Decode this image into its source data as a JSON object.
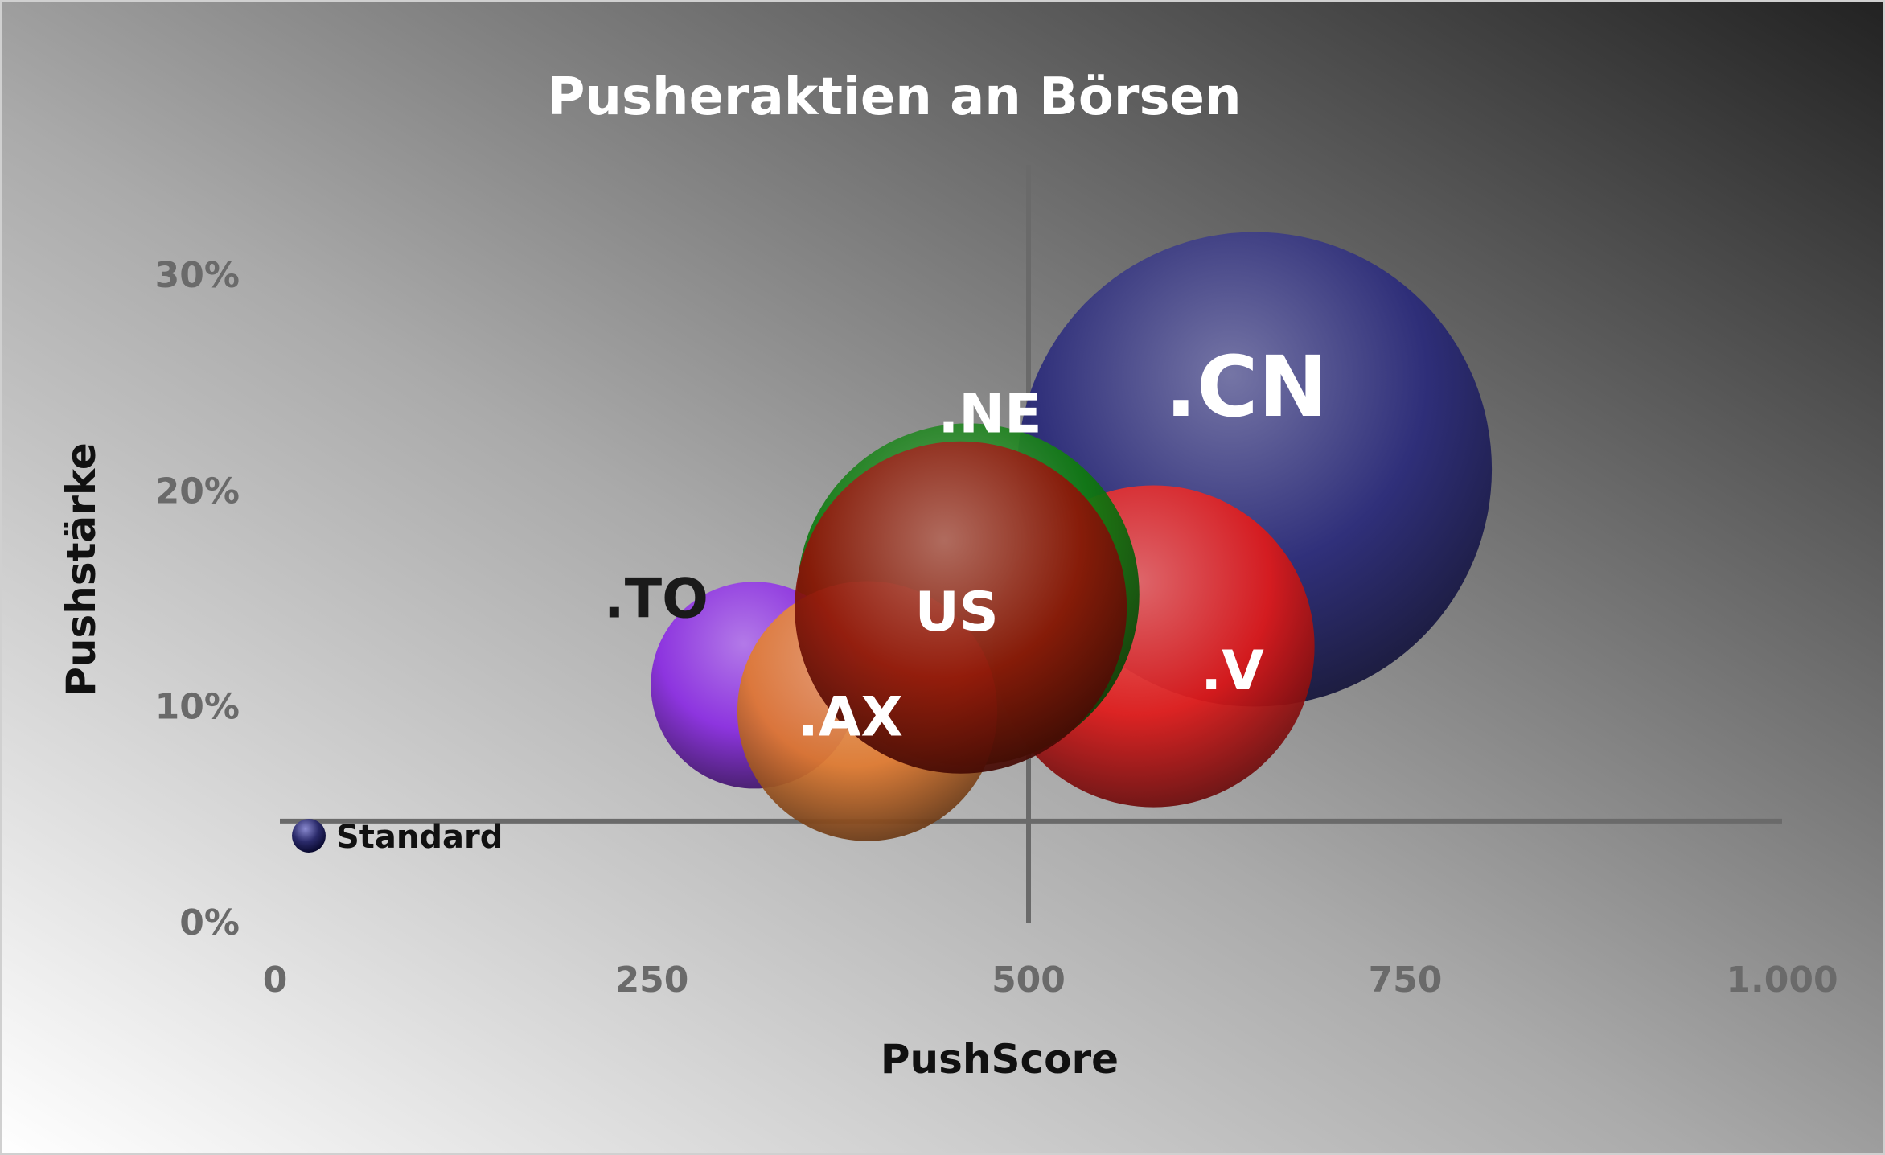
{
  "chart_data": {
    "type": "bubble",
    "title": "Pusheraktien an Börsen",
    "xlabel": "PushScore",
    "ylabel": "Pushstärke",
    "xlim": [
      0,
      1000
    ],
    "ylim": [
      0,
      0.3
    ],
    "x_ticks": [
      {
        "value": 0,
        "label": "0"
      },
      {
        "value": 250,
        "label": "250"
      },
      {
        "value": 500,
        "label": "500"
      },
      {
        "value": 750,
        "label": "750"
      },
      {
        "value": 1000,
        "label": "1.000"
      }
    ],
    "y_ticks": [
      {
        "value": 0,
        "label": "0%"
      },
      {
        "value": 0.1,
        "label": "10%"
      },
      {
        "value": 0.2,
        "label": "20%"
      },
      {
        "value": 0.3,
        "label": "30%"
      }
    ],
    "grid": false,
    "reference_lines": {
      "x": 500,
      "y": 0.047
    },
    "legend": {
      "position": "bottom-left",
      "entries": [
        "Standard"
      ]
    },
    "background": {
      "from": "#ffffff",
      "to": "#222222",
      "direction": "to top-right"
    },
    "bubbles": [
      {
        "label": ".CN",
        "x": 650,
        "y": 0.21,
        "size": 1.0,
        "color": "#2a2a7a",
        "label_color": "#ffffff"
      },
      {
        "label": ".V",
        "x": 583,
        "y": 0.128,
        "size": 0.46,
        "color": "#e01a1a",
        "label_color": "#ffffff"
      },
      {
        "label": ".NE",
        "x": 460,
        "y": 0.152,
        "size": 0.52,
        "color": "#0f7a0f",
        "label_color": "#ffffff"
      },
      {
        "label": ".TO",
        "x": 318,
        "y": 0.11,
        "size": 0.19,
        "color": "#8a2be2",
        "label_color": "#1a1a1a"
      },
      {
        "label": ".AX",
        "x": 393,
        "y": 0.098,
        "size": 0.3,
        "color": "#e07a30",
        "label_color": "#ffffff"
      },
      {
        "label": "US",
        "x": 455,
        "y": 0.146,
        "size": 0.49,
        "color": "#8e1508",
        "label_color": "#ffffff"
      }
    ]
  }
}
